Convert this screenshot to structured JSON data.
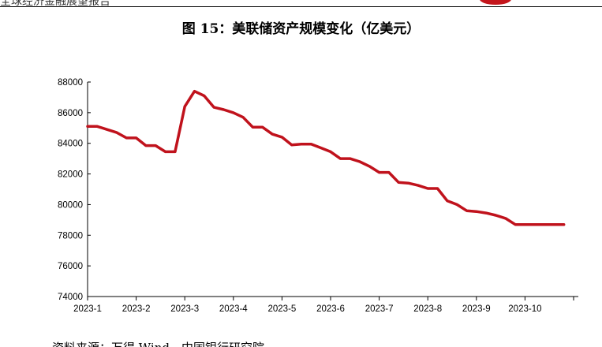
{
  "header": {
    "report_label": "全球经济金融展望报告"
  },
  "figure": {
    "title": "图 15：美联储资产规模变化（亿美元）"
  },
  "source": {
    "text": "资料来源：万得 Wind，中国银行研究院"
  },
  "chart_data": {
    "type": "line",
    "title": "图 15：美联储资产规模变化（亿美元）",
    "xlabel": "",
    "ylabel": "",
    "categories": [
      "2023-1",
      "2023-2",
      "2023-3",
      "2023-4",
      "2023-5",
      "2023-6",
      "2023-7",
      "2023-8",
      "2023-9",
      "2023-10"
    ],
    "ylim": [
      74000,
      88000
    ],
    "yticks": [
      74000,
      76000,
      78000,
      80000,
      82000,
      84000,
      86000,
      88000
    ],
    "grid": false,
    "legend": "none",
    "series": [
      {
        "color": "#c0121c",
        "x": [
          0,
          0.2,
          0.4,
          0.6,
          0.8,
          1.0,
          1.2,
          1.4,
          1.6,
          1.8,
          2.0,
          2.2,
          2.4,
          2.6,
          2.8,
          3.0,
          3.2,
          3.4,
          3.6,
          3.8,
          4.0,
          4.2,
          4.4,
          4.6,
          4.8,
          5.0,
          5.2,
          5.4,
          5.6,
          5.8,
          6.0,
          6.2,
          6.4,
          6.6,
          6.8,
          7.0,
          7.2,
          7.4,
          7.6,
          7.8,
          8.0,
          8.2,
          8.4,
          8.6,
          8.8,
          9.0,
          9.2,
          9.4,
          9.6,
          9.8
        ],
        "values": [
          85100,
          85100,
          84900,
          84700,
          84350,
          84350,
          83850,
          83850,
          83450,
          83450,
          86400,
          87400,
          87100,
          86350,
          86200,
          86000,
          85700,
          85050,
          85050,
          84600,
          84400,
          83900,
          83950,
          83950,
          83700,
          83450,
          83000,
          83000,
          82800,
          82500,
          82100,
          82100,
          81450,
          81400,
          81250,
          81050,
          81050,
          80250,
          80000,
          79600,
          79550,
          79450,
          79300,
          79100,
          78700,
          78700,
          78700,
          78700,
          78700,
          78700
        ]
      }
    ]
  }
}
